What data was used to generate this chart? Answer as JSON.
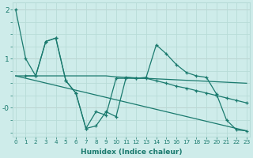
{
  "xlabel": "Humidex (Indice chaleur)",
  "background_color": "#ceecea",
  "grid_color": "#b8dcd8",
  "line_color": "#1a7a6e",
  "xlim": [
    -0.3,
    23.3
  ],
  "ylim": [
    -0.58,
    2.15
  ],
  "yticks": [
    2,
    1,
    0
  ],
  "ytick_labels": [
    "2",
    "1",
    "-0"
  ],
  "line1_x": [
    0,
    1,
    2,
    3,
    4,
    5,
    6,
    7,
    8,
    9,
    10,
    11,
    12,
    13,
    14,
    15,
    16,
    17,
    18,
    19,
    20,
    21,
    22,
    23
  ],
  "line1_y": [
    2.0,
    1.0,
    0.65,
    1.35,
    1.42,
    0.55,
    0.3,
    -0.42,
    -0.37,
    -0.08,
    -0.18,
    0.62,
    0.6,
    0.62,
    1.28,
    1.1,
    0.88,
    0.72,
    0.65,
    0.62,
    0.28,
    -0.25,
    -0.45,
    -0.47
  ],
  "line2_x": [
    0,
    1,
    2,
    3,
    4,
    5,
    6,
    7,
    8,
    9,
    10,
    11,
    12,
    13,
    14,
    15,
    16,
    17,
    18,
    19,
    20,
    21,
    22,
    23
  ],
  "line2_y": [
    0.65,
    0.65,
    0.65,
    0.65,
    0.65,
    0.65,
    0.65,
    0.65,
    0.65,
    0.65,
    0.63,
    0.62,
    0.61,
    0.6,
    0.59,
    0.58,
    0.57,
    0.56,
    0.55,
    0.54,
    0.53,
    0.52,
    0.51,
    0.5
  ],
  "line3_x": [
    0,
    23
  ],
  "line3_y": [
    0.65,
    -0.47
  ],
  "line4_x": [
    1,
    2,
    3,
    4,
    5,
    6,
    7,
    8,
    9,
    10,
    11,
    12,
    13,
    14,
    15,
    16,
    17,
    18,
    19,
    20,
    21,
    22,
    23
  ],
  "line4_y": [
    0.65,
    0.65,
    1.35,
    1.42,
    0.55,
    0.3,
    -0.42,
    -0.08,
    -0.15,
    0.6,
    0.6,
    0.6,
    0.6,
    0.55,
    0.5,
    0.44,
    0.4,
    0.35,
    0.3,
    0.25,
    0.2,
    0.15,
    0.1
  ]
}
